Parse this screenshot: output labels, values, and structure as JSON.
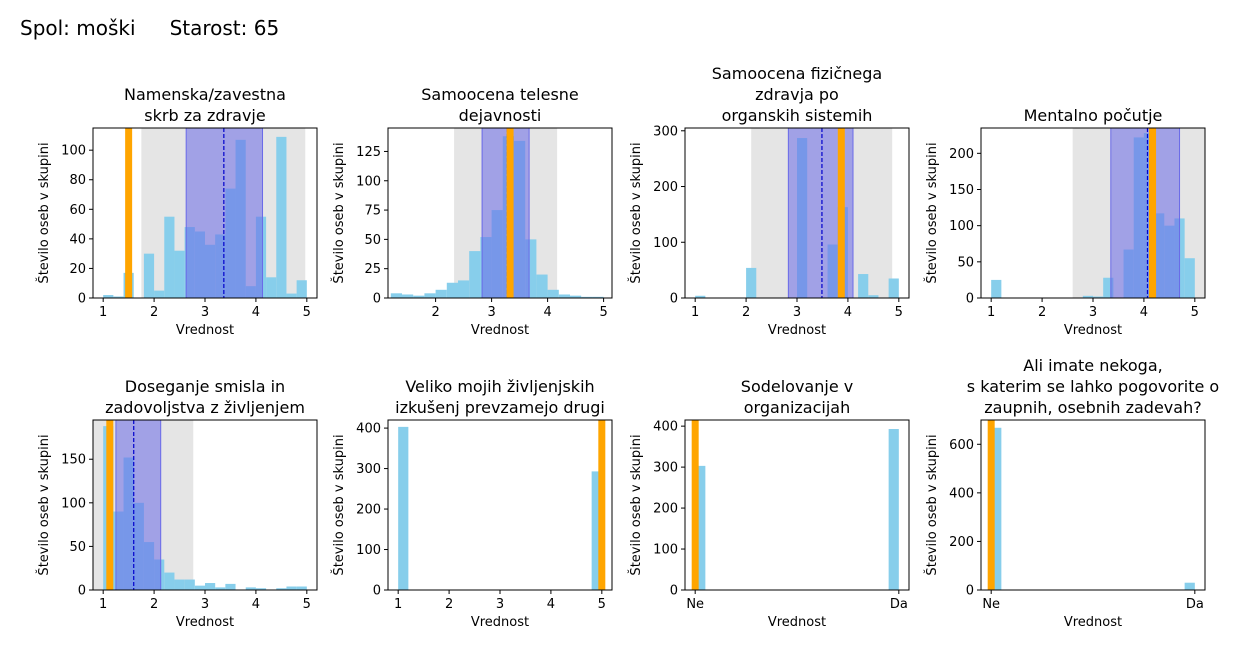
{
  "header": {
    "sex": "Spol: moški",
    "age": "Starost: 65"
  },
  "colors": {
    "hist": "#87ceeb",
    "selected": "#ffa500",
    "iqr": "#6a6ae8",
    "range": "#bdbdbd",
    "mean": "#0000cc"
  },
  "chart_data": [
    {
      "type": "bar",
      "title": [
        "Namenska/zavestna",
        "skrb za zdravje"
      ],
      "xlabel": "Vrednost",
      "ylabel": "Število oseb v skupini",
      "xlim": [
        0.8,
        5.2
      ],
      "ylim": [
        0,
        115
      ],
      "xticks": [
        1,
        2,
        3,
        4,
        5
      ],
      "yticks": [
        0,
        20,
        40,
        60,
        80,
        100
      ],
      "bin_starts": [
        1.0,
        1.2,
        1.4,
        1.6,
        1.8,
        2.0,
        2.2,
        2.4,
        2.6,
        2.8,
        3.0,
        3.2,
        3.4,
        3.6,
        3.8,
        4.0,
        4.2,
        4.4,
        4.6,
        4.8
      ],
      "bin_width": 0.2,
      "values": [
        2,
        1,
        17,
        0,
        30,
        5,
        55,
        32,
        48,
        45,
        36,
        43,
        74,
        107,
        8,
        55,
        14,
        109,
        3,
        12
      ],
      "range": [
        1.75,
        4.97
      ],
      "iqr": [
        2.63,
        4.13
      ],
      "mean": 3.37,
      "selected": 1.5
    },
    {
      "type": "bar",
      "title": [
        "Samoocena telesne",
        "dejavnosti"
      ],
      "xlabel": "Vrednost",
      "ylabel": "Število oseb v skupini",
      "xlim": [
        1.15,
        5.15
      ],
      "ylim": [
        0,
        145
      ],
      "xticks": [
        2,
        3,
        4,
        5
      ],
      "yticks": [
        0,
        25,
        50,
        75,
        100,
        125
      ],
      "bin_starts": [
        1.2,
        1.4,
        1.6,
        1.8,
        2.0,
        2.2,
        2.4,
        2.6,
        2.8,
        3.0,
        3.2,
        3.4,
        3.6,
        3.8,
        4.0,
        4.2,
        4.4,
        4.6,
        4.8
      ],
      "bin_width": 0.2,
      "values": [
        4,
        3,
        2,
        4,
        7,
        13,
        15,
        40,
        52,
        75,
        138,
        134,
        50,
        20,
        7,
        3,
        2,
        1,
        1
      ],
      "range": [
        2.33,
        4.17
      ],
      "iqr": [
        2.83,
        3.67
      ],
      "mean": 3.28,
      "selected": 3.33
    },
    {
      "type": "bar",
      "title": [
        "Samoocena fizičnega",
        "zdravja po",
        "organskih sistemih"
      ],
      "xlabel": "Vrednost",
      "ylabel": "Število oseb v skupini",
      "xlim": [
        0.8,
        5.2
      ],
      "ylim": [
        0,
        305
      ],
      "xticks": [
        1,
        2,
        3,
        4,
        5
      ],
      "yticks": [
        0,
        100,
        200,
        300
      ],
      "bin_starts": [
        1.0,
        1.2,
        1.4,
        1.6,
        1.8,
        2.0,
        2.2,
        2.4,
        2.6,
        2.8,
        3.0,
        3.2,
        3.4,
        3.6,
        3.8,
        4.0,
        4.2,
        4.4,
        4.6,
        4.8
      ],
      "bin_width": 0.2,
      "values": [
        4,
        0,
        0,
        0,
        0,
        54,
        0,
        0,
        0,
        0,
        287,
        0,
        0,
        96,
        163,
        0,
        43,
        5,
        0,
        35
      ],
      "range": [
        2.1,
        4.87
      ],
      "iqr": [
        2.83,
        4.1
      ],
      "mean": 3.49,
      "selected": 3.87
    },
    {
      "type": "bar",
      "title": [
        "Mentalno počutje"
      ],
      "xlabel": "Vrednost",
      "ylabel": "Število oseb v skupini",
      "xlim": [
        0.8,
        5.2
      ],
      "ylim": [
        0,
        235
      ],
      "xticks": [
        1,
        2,
        3,
        4,
        5
      ],
      "yticks": [
        0,
        50,
        100,
        150,
        200
      ],
      "bin_starts": [
        1.0,
        1.2,
        1.4,
        1.6,
        1.8,
        2.0,
        2.2,
        2.4,
        2.6,
        2.8,
        3.0,
        3.2,
        3.4,
        3.6,
        3.8,
        4.0,
        4.2,
        4.4,
        4.6,
        4.8
      ],
      "bin_width": 0.2,
      "values": [
        25,
        0,
        0,
        0,
        0,
        0,
        0,
        0,
        0,
        3,
        2,
        28,
        0,
        67,
        222,
        228,
        117,
        100,
        110,
        55
      ],
      "range": [
        2.6,
        5.2
      ],
      "iqr": [
        3.35,
        4.7
      ],
      "mean": 4.07,
      "selected": 4.17
    },
    {
      "type": "bar",
      "title": [
        "Doseganje smisla in",
        "zadovoljstva z življenjem"
      ],
      "xlabel": "Vrednost",
      "ylabel": "Število oseb v skupini",
      "xlim": [
        0.8,
        5.2
      ],
      "ylim": [
        0,
        195
      ],
      "xticks": [
        1,
        2,
        3,
        4,
        5
      ],
      "yticks": [
        0,
        50,
        100,
        150
      ],
      "bin_starts": [
        1.0,
        1.2,
        1.4,
        1.6,
        1.8,
        2.0,
        2.2,
        2.4,
        2.6,
        2.8,
        3.0,
        3.2,
        3.4,
        3.6,
        3.8,
        4.0,
        4.2,
        4.4,
        4.6,
        4.8
      ],
      "bin_width": 0.2,
      "values": [
        188,
        90,
        152,
        100,
        55,
        35,
        20,
        12,
        12,
        5,
        8,
        3,
        7,
        0,
        3,
        2,
        0,
        2,
        4,
        4
      ],
      "range": [
        0.8,
        2.77
      ],
      "iqr": [
        1.25,
        2.13
      ],
      "mean": 1.6,
      "selected": 1.13
    },
    {
      "type": "bar",
      "title": [
        "Veliko mojih življenjskih",
        "izkušenj prevzamejo drugi"
      ],
      "xlabel": "Vrednost",
      "ylabel": "Število oseb v skupini",
      "xlim": [
        0.8,
        5.2
      ],
      "ylim": [
        0,
        420
      ],
      "xticks": [
        1,
        2,
        3,
        4,
        5
      ],
      "yticks": [
        0,
        100,
        200,
        300,
        400
      ],
      "bin_starts": [
        1.0,
        4.8
      ],
      "bin_width": 0.2,
      "values": [
        403,
        293
      ],
      "selected": 5.0
    },
    {
      "type": "bar",
      "title": [
        "Sodelovanje v",
        "organizacijah"
      ],
      "xlabel": "Vrednost",
      "ylabel": "Število oseb v skupini",
      "xlim": [
        -0.05,
        1.05
      ],
      "ylim": [
        0,
        415
      ],
      "xticks": [
        0,
        1
      ],
      "xticklabels": [
        "Ne",
        "Da"
      ],
      "yticks": [
        0,
        100,
        200,
        300,
        400
      ],
      "bin_starts": [
        0.0,
        0.95
      ],
      "bin_width": 0.05,
      "values": [
        303,
        393
      ],
      "selected": 0.0
    },
    {
      "type": "bar",
      "title": [
        "Ali imate nekoga,",
        "s katerim se lahko pogovorite o",
        "zaupnih, osebnih zadevah?"
      ],
      "xlabel": "Vrednost",
      "ylabel": "Število oseb v skupini",
      "xlim": [
        -0.05,
        1.05
      ],
      "ylim": [
        0,
        700
      ],
      "xticks": [
        0,
        1
      ],
      "xticklabels": [
        "Ne",
        "Da"
      ],
      "yticks": [
        0,
        200,
        400,
        600
      ],
      "bin_starts": [
        0.0,
        0.95
      ],
      "bin_width": 0.05,
      "values": [
        668,
        30
      ],
      "selected": 0.0
    }
  ]
}
